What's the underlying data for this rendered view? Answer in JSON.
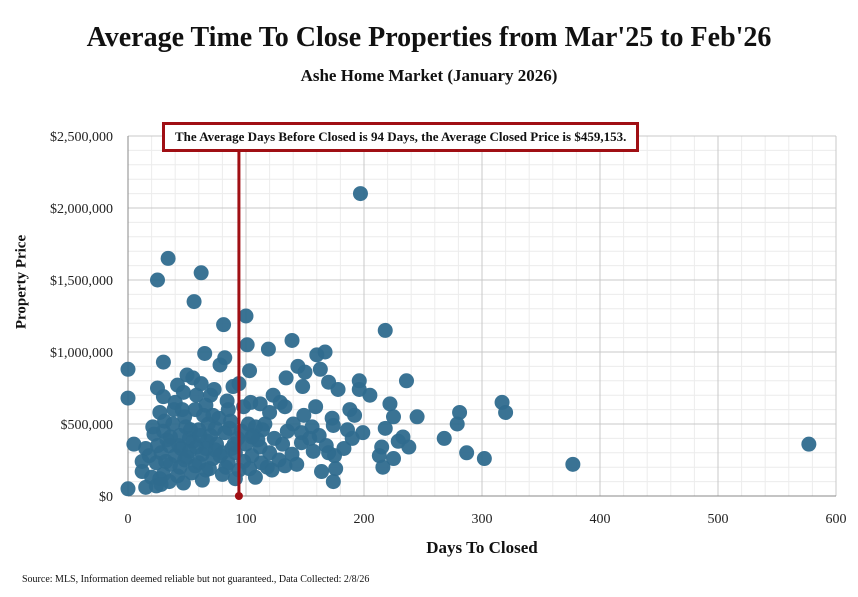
{
  "chart_data": {
    "type": "scatter",
    "title": "Average Time To Close Properties from Mar'25 to Feb'26",
    "subtitle": "Ashe Home Market (January 2026)",
    "xlabel": "Days To Closed",
    "ylabel": "Property Price",
    "xlim": [
      0,
      600
    ],
    "ylim": [
      0,
      2500000
    ],
    "x_ticks": [
      "0",
      "100",
      "200",
      "300",
      "400",
      "500",
      "600"
    ],
    "y_ticks": [
      "$0",
      "$500,000",
      "$1,000,000",
      "$1,500,000",
      "$2,000,000",
      "$2,500,000"
    ],
    "grid": true,
    "point_color": "#2f6b8e",
    "reference_line": {
      "x": 94,
      "color": "#a00f14"
    },
    "annotation": "The Average Days Before Closed is 94 Days, the Average Closed Price is $459,153.",
    "source": "Source: MLS, Information deemed reliable but not guaranteed., Data Collected: 2/8/26",
    "points": [
      [
        197,
        2100000
      ],
      [
        34,
        1650000
      ],
      [
        62,
        1550000
      ],
      [
        25,
        1500000
      ],
      [
        56,
        1350000
      ],
      [
        100,
        1250000
      ],
      [
        81,
        1190000
      ],
      [
        218,
        1150000
      ],
      [
        139,
        1080000
      ],
      [
        101,
        1050000
      ],
      [
        119,
        1020000
      ],
      [
        167,
        1000000
      ],
      [
        160,
        980000
      ],
      [
        65,
        990000
      ],
      [
        30,
        930000
      ],
      [
        82,
        960000
      ],
      [
        78,
        910000
      ],
      [
        0,
        880000
      ],
      [
        144,
        900000
      ],
      [
        163,
        880000
      ],
      [
        150,
        860000
      ],
      [
        103,
        870000
      ],
      [
        196,
        800000
      ],
      [
        236,
        800000
      ],
      [
        50,
        840000
      ],
      [
        42,
        770000
      ],
      [
        94,
        780000
      ],
      [
        170,
        790000
      ],
      [
        134,
        820000
      ],
      [
        25,
        750000
      ],
      [
        47,
        720000
      ],
      [
        58,
        700000
      ],
      [
        73,
        740000
      ],
      [
        89,
        760000
      ],
      [
        112,
        640000
      ],
      [
        123,
        700000
      ],
      [
        148,
        760000
      ],
      [
        178,
        740000
      ],
      [
        196,
        740000
      ],
      [
        205,
        700000
      ],
      [
        0,
        680000
      ],
      [
        30,
        690000
      ],
      [
        84,
        660000
      ],
      [
        98,
        620000
      ],
      [
        104,
        650000
      ],
      [
        129,
        650000
      ],
      [
        159,
        620000
      ],
      [
        188,
        600000
      ],
      [
        222,
        640000
      ],
      [
        317,
        650000
      ],
      [
        281,
        580000
      ],
      [
        320,
        580000
      ],
      [
        245,
        550000
      ],
      [
        225,
        550000
      ],
      [
        192,
        560000
      ],
      [
        173,
        540000
      ],
      [
        149,
        560000
      ],
      [
        133,
        620000
      ],
      [
        120,
        580000
      ],
      [
        39,
        600000
      ],
      [
        27,
        580000
      ],
      [
        64,
        560000
      ],
      [
        77,
        540000
      ],
      [
        87,
        520000
      ],
      [
        102,
        500000
      ],
      [
        108,
        480000
      ],
      [
        114,
        460000
      ],
      [
        140,
        500000
      ],
      [
        156,
        480000
      ],
      [
        174,
        490000
      ],
      [
        186,
        460000
      ],
      [
        199,
        440000
      ],
      [
        218,
        470000
      ],
      [
        279,
        500000
      ],
      [
        233,
        410000
      ],
      [
        190,
        400000
      ],
      [
        162,
        420000
      ],
      [
        147,
        440000
      ],
      [
        124,
        400000
      ],
      [
        30,
        450000
      ],
      [
        22,
        430000
      ],
      [
        49,
        480000
      ],
      [
        60,
        460000
      ],
      [
        70,
        420000
      ],
      [
        82,
        440000
      ],
      [
        96,
        450000
      ],
      [
        106,
        420000
      ],
      [
        268,
        400000
      ],
      [
        287,
        300000
      ],
      [
        302,
        260000
      ],
      [
        377,
        220000
      ],
      [
        577,
        360000
      ],
      [
        5,
        360000
      ],
      [
        15,
        330000
      ],
      [
        33,
        390000
      ],
      [
        43,
        350000
      ],
      [
        55,
        380000
      ],
      [
        75,
        360000
      ],
      [
        88,
        330000
      ],
      [
        100,
        360000
      ],
      [
        112,
        340000
      ],
      [
        131,
        360000
      ],
      [
        147,
        370000
      ],
      [
        168,
        350000
      ],
      [
        183,
        330000
      ],
      [
        215,
        340000
      ],
      [
        238,
        340000
      ],
      [
        229,
        380000
      ],
      [
        175,
        280000
      ],
      [
        213,
        280000
      ],
      [
        225,
        260000
      ],
      [
        170,
        300000
      ],
      [
        157,
        310000
      ],
      [
        139,
        290000
      ],
      [
        120,
        300000
      ],
      [
        105,
        280000
      ],
      [
        91,
        300000
      ],
      [
        74,
        320000
      ],
      [
        63,
        290000
      ],
      [
        52,
        310000
      ],
      [
        40,
        280000
      ],
      [
        28,
        300000
      ],
      [
        18,
        280000
      ],
      [
        12,
        240000
      ],
      [
        24,
        230000
      ],
      [
        36,
        220000
      ],
      [
        48,
        250000
      ],
      [
        60,
        230000
      ],
      [
        72,
        260000
      ],
      [
        85,
        230000
      ],
      [
        98,
        240000
      ],
      [
        113,
        230000
      ],
      [
        128,
        250000
      ],
      [
        143,
        220000
      ],
      [
        133,
        210000
      ],
      [
        118,
        200000
      ],
      [
        216,
        200000
      ],
      [
        176,
        190000
      ],
      [
        164,
        170000
      ],
      [
        174,
        100000
      ],
      [
        108,
        130000
      ],
      [
        80,
        150000
      ],
      [
        66,
        180000
      ],
      [
        54,
        160000
      ],
      [
        42,
        140000
      ],
      [
        30,
        150000
      ],
      [
        20,
        130000
      ],
      [
        12,
        170000
      ],
      [
        44,
        200000
      ],
      [
        57,
        210000
      ],
      [
        69,
        190000
      ],
      [
        83,
        200000
      ],
      [
        94,
        180000
      ],
      [
        103,
        190000
      ],
      [
        122,
        180000
      ],
      [
        35,
        100000
      ],
      [
        63,
        110000
      ],
      [
        27,
        120000
      ],
      [
        47,
        90000
      ],
      [
        0,
        50000
      ],
      [
        15,
        60000
      ],
      [
        24,
        70000
      ],
      [
        28,
        80000
      ],
      [
        91,
        120000
      ],
      [
        45,
        330000
      ],
      [
        52,
        400000
      ],
      [
        67,
        380000
      ],
      [
        36,
        410000
      ],
      [
        58,
        340000
      ],
      [
        80,
        300000
      ],
      [
        93,
        400000
      ],
      [
        110,
        390000
      ],
      [
        66,
        630000
      ],
      [
        40,
        650000
      ],
      [
        55,
        820000
      ],
      [
        62,
        780000
      ],
      [
        70,
        700000
      ],
      [
        46,
        600000
      ],
      [
        31,
        520000
      ],
      [
        21,
        480000
      ],
      [
        38,
        500000
      ],
      [
        68,
        500000
      ],
      [
        74,
        470000
      ],
      [
        86,
        470000
      ],
      [
        53,
        460000
      ],
      [
        61,
        420000
      ],
      [
        44,
        420000
      ],
      [
        35,
        350000
      ],
      [
        25,
        350000
      ],
      [
        50,
        270000
      ],
      [
        66,
        330000
      ],
      [
        78,
        280000
      ],
      [
        32,
        240000
      ],
      [
        90,
        360000
      ],
      [
        105,
        410000
      ],
      [
        116,
        500000
      ],
      [
        135,
        450000
      ],
      [
        154,
        400000
      ],
      [
        57,
        600000
      ],
      [
        85,
        600000
      ],
      [
        48,
        550000
      ],
      [
        72,
        560000
      ]
    ]
  }
}
